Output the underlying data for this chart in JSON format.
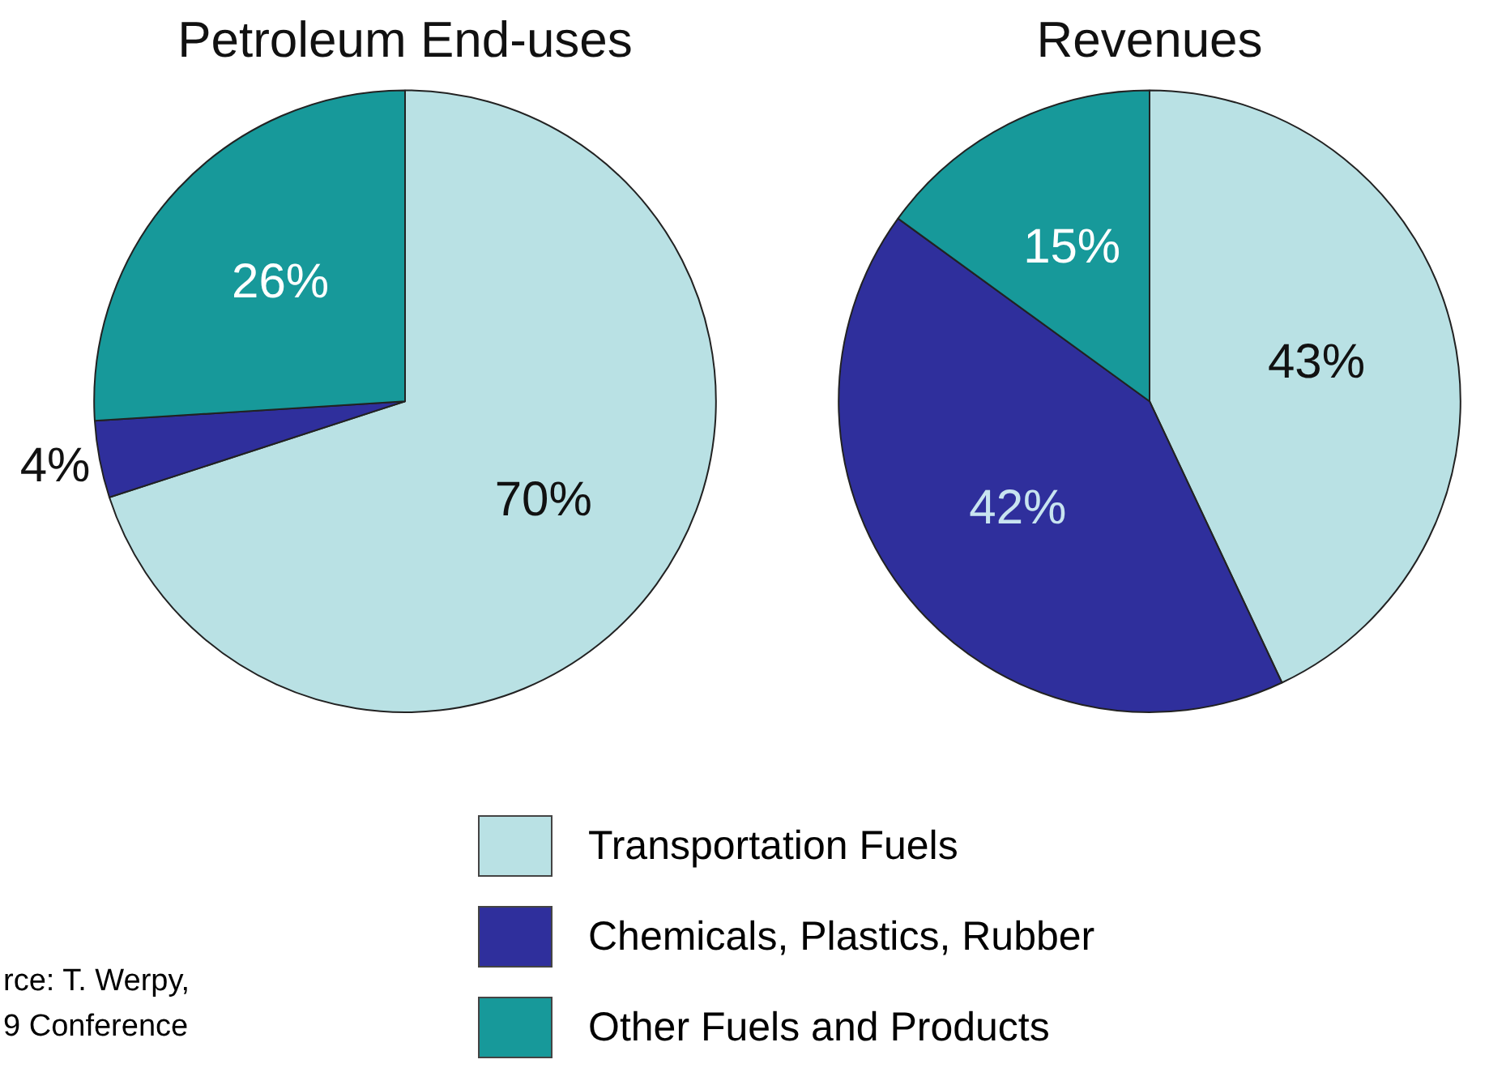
{
  "chart_data": [
    {
      "type": "pie",
      "title": "Petroleum End-uses",
      "categories": [
        "Transportation Fuels",
        "Chemicals, Plastics, Rubber",
        "Other Fuels and Products"
      ],
      "values": [
        70,
        4,
        26
      ],
      "value_labels": [
        "70%",
        "4%",
        "26%"
      ],
      "colors": [
        "#b9e1e4",
        "#2f2f9c",
        "#17999a"
      ],
      "legend": "bottom",
      "annotations": [
        "rce: T. Werpy,",
        "9 Conference"
      ]
    },
    {
      "type": "pie",
      "title": "Revenues",
      "categories": [
        null,
        null,
        null
      ],
      "values": [
        43,
        42,
        15
      ],
      "value_labels": [
        "43%",
        "42%",
        "15%"
      ],
      "colors": [
        "#b9e1e4",
        "#2f2f9c",
        "#17999a"
      ]
    }
  ]
}
